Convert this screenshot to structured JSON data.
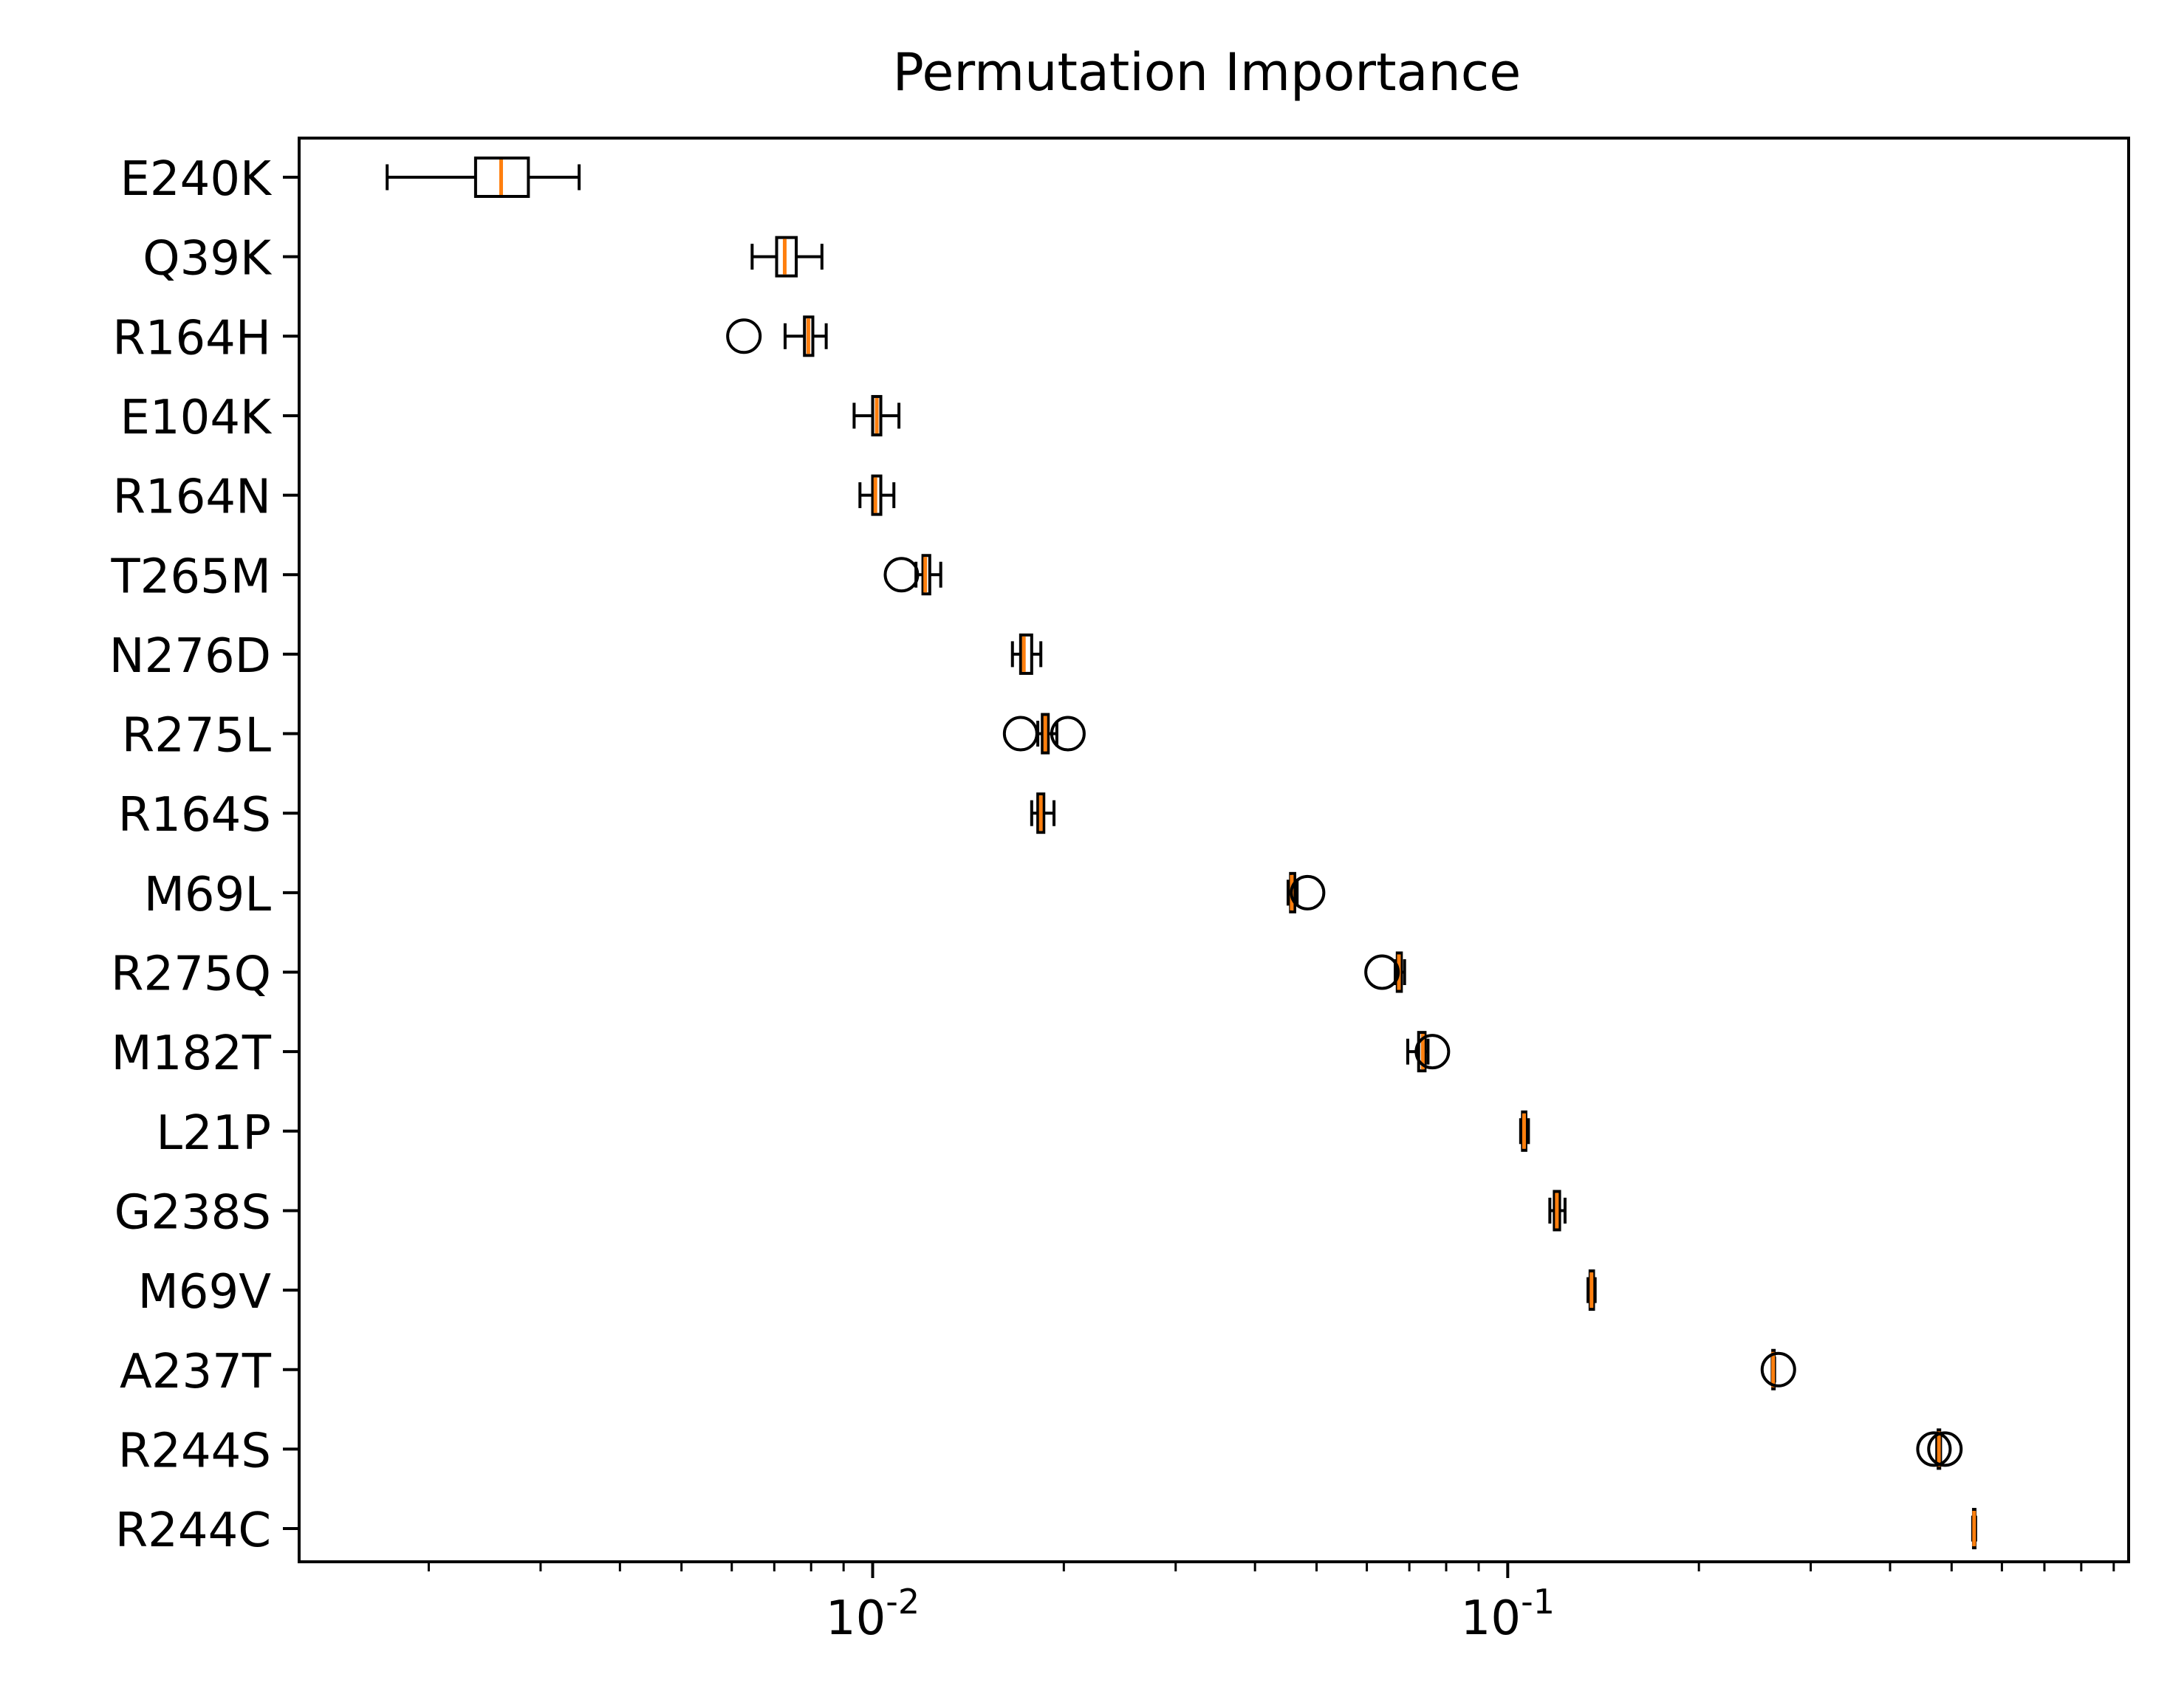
{
  "chart_data": {
    "type": "boxplot",
    "title": "Permutation Importance",
    "xlabel": "",
    "ylabel": "",
    "xscale": "log",
    "xlim": [
      0.00125,
      0.95
    ],
    "x_tick_labels": [
      "10^-2",
      "10^-1"
    ],
    "x_major_ticks": [
      0.01,
      0.1
    ],
    "grid": false,
    "legend": "none",
    "colors": {
      "box_edge": "#000000",
      "median": "#ff7f0e"
    },
    "series": [
      {
        "label": "E240K",
        "whisker_low": 0.00172,
        "q1": 0.00237,
        "median": 0.0026,
        "q3": 0.00287,
        "whisker_high": 0.00345,
        "outliers": []
      },
      {
        "label": "Q39K",
        "whisker_low": 0.00646,
        "q1": 0.00706,
        "median": 0.00727,
        "q3": 0.00758,
        "whisker_high": 0.00832,
        "outliers": []
      },
      {
        "label": "R164H",
        "whisker_low": 0.00728,
        "q1": 0.00781,
        "median": 0.00792,
        "q3": 0.00805,
        "whisker_high": 0.00845,
        "outliers": [
          0.00627
        ]
      },
      {
        "label": "E104K",
        "whisker_low": 0.00935,
        "q1": 0.01,
        "median": 0.01015,
        "q3": 0.0103,
        "whisker_high": 0.011,
        "outliers": []
      },
      {
        "label": "R164N",
        "whisker_low": 0.00955,
        "q1": 0.01,
        "median": 0.0101,
        "q3": 0.0103,
        "whisker_high": 0.0108,
        "outliers": []
      },
      {
        "label": "T265M",
        "whisker_low": 0.0117,
        "q1": 0.012,
        "median": 0.0121,
        "q3": 0.0123,
        "whisker_high": 0.0128,
        "outliers": [
          0.0111
        ]
      },
      {
        "label": "N276D",
        "whisker_low": 0.0166,
        "q1": 0.0171,
        "median": 0.0173,
        "q3": 0.0178,
        "whisker_high": 0.0184,
        "outliers": []
      },
      {
        "label": "R275L",
        "whisker_low": 0.0182,
        "q1": 0.0185,
        "median": 0.0187,
        "q3": 0.0189,
        "whisker_high": 0.0195,
        "outliers": [
          0.0171,
          0.0203
        ]
      },
      {
        "label": "R164S",
        "whisker_low": 0.0178,
        "q1": 0.0182,
        "median": 0.0184,
        "q3": 0.0186,
        "whisker_high": 0.0193,
        "outliers": []
      },
      {
        "label": "M69L",
        "whisker_low": 0.0451,
        "q1": 0.0455,
        "median": 0.0457,
        "q3": 0.0462,
        "whisker_high": 0.0466,
        "outliers": [
          0.0484
        ]
      },
      {
        "label": "R275Q",
        "whisker_low": 0.0665,
        "q1": 0.067,
        "median": 0.0674,
        "q3": 0.068,
        "whisker_high": 0.0688,
        "outliers": [
          0.0634
        ]
      },
      {
        "label": "M182T",
        "whisker_low": 0.0696,
        "q1": 0.0724,
        "median": 0.0735,
        "q3": 0.0741,
        "whisker_high": 0.0749,
        "outliers": [
          0.0761
        ]
      },
      {
        "label": "L21P",
        "whisker_low": 0.1048,
        "q1": 0.1055,
        "median": 0.1061,
        "q3": 0.1068,
        "whisker_high": 0.1078,
        "outliers": []
      },
      {
        "label": "G238S",
        "whisker_low": 0.1165,
        "q1": 0.1184,
        "median": 0.1195,
        "q3": 0.1207,
        "whisker_high": 0.1231,
        "outliers": []
      },
      {
        "label": "M69V",
        "whisker_low": 0.1338,
        "q1": 0.1348,
        "median": 0.1355,
        "q3": 0.1365,
        "whisker_high": 0.1373,
        "outliers": []
      },
      {
        "label": "A237T",
        "whisker_low": 0.2609,
        "q1": 0.2614,
        "median": 0.2618,
        "q3": 0.2626,
        "whisker_high": 0.2632,
        "outliers": [
          0.2668
        ]
      },
      {
        "label": "R244S",
        "whisker_low": 0.4738,
        "q1": 0.4762,
        "median": 0.4775,
        "q3": 0.4789,
        "whisker_high": 0.4804,
        "outliers": [
          0.469,
          0.488
        ]
      },
      {
        "label": "R244C",
        "whisker_low": 0.5397,
        "q1": 0.5413,
        "median": 0.5425,
        "q3": 0.5436,
        "whisker_high": 0.5456,
        "outliers": []
      }
    ]
  }
}
